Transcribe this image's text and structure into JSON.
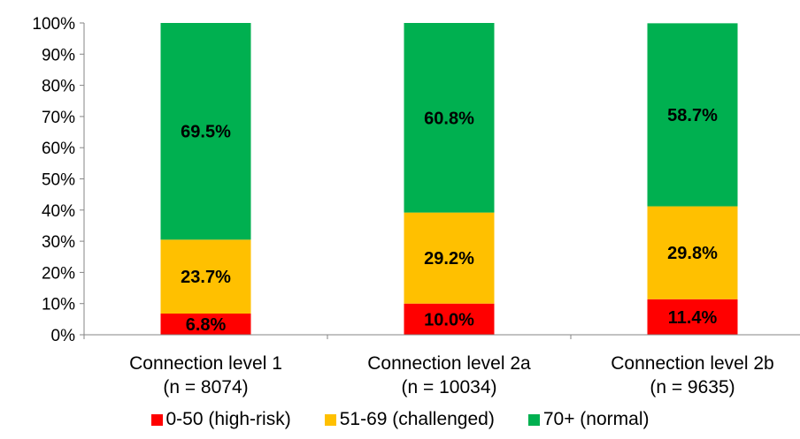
{
  "chart_data": {
    "type": "bar",
    "stacked": true,
    "percent": true,
    "categories": [
      "Connection level 1",
      "Connection level 2a",
      "Connection level 2b"
    ],
    "category_sublabels": [
      "(n = 8074)",
      "(n = 10034)",
      "(n = 9635)"
    ],
    "series": [
      {
        "name": "0-50 (high-risk)",
        "color": "#ff0000",
        "values": [
          6.8,
          10.0,
          11.4
        ],
        "labels": [
          "6.8%",
          "10.0%",
          "11.4%"
        ]
      },
      {
        "name": "51-69 (challenged)",
        "color": "#ffc000",
        "values": [
          23.7,
          29.2,
          29.8
        ],
        "labels": [
          "23.7%",
          "29.2%",
          "29.8%"
        ]
      },
      {
        "name": "70+ (normal)",
        "color": "#00b050",
        "values": [
          69.5,
          60.8,
          58.7
        ],
        "labels": [
          "69.5%",
          "60.8%",
          "58.7%"
        ]
      }
    ],
    "ylim": [
      0,
      100
    ],
    "yticks": [
      "0%",
      "10%",
      "20%",
      "30%",
      "40%",
      "50%",
      "60%",
      "70%",
      "80%",
      "90%",
      "100%"
    ],
    "grid": false,
    "legend_position": "bottom"
  }
}
